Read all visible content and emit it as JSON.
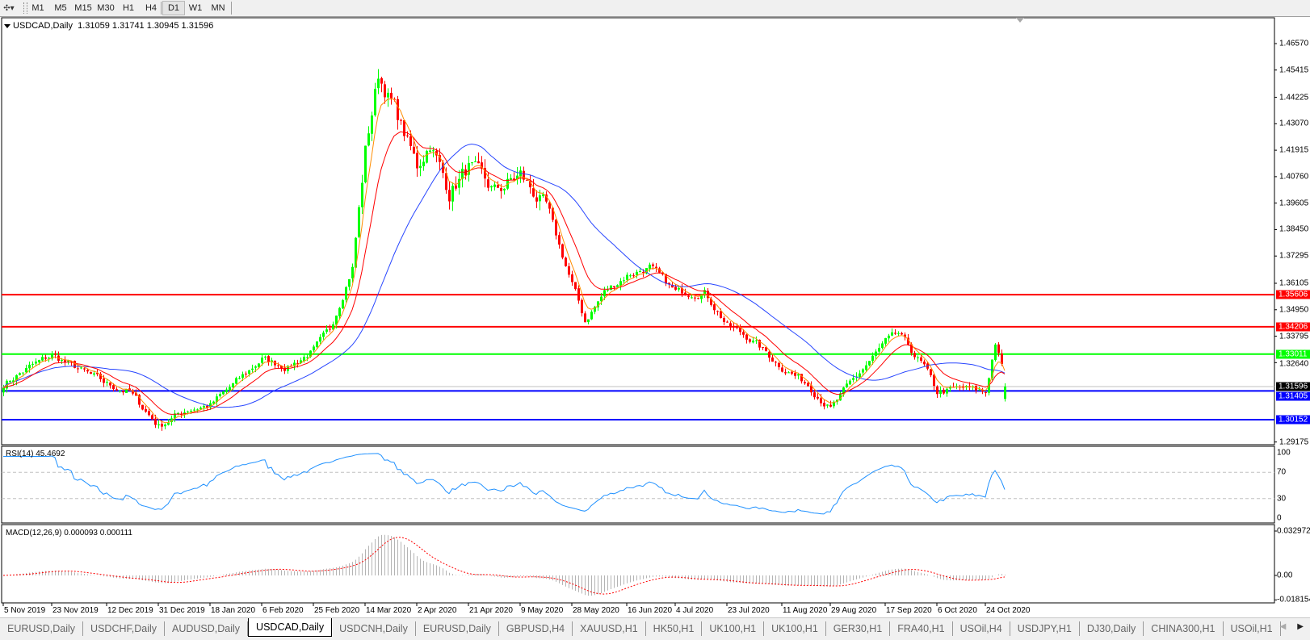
{
  "toolbar": {
    "tool_icon": "crosshair-cursor-icon",
    "timeframes": [
      "M1",
      "M5",
      "M15",
      "M30",
      "H1",
      "H4",
      "D1",
      "W1",
      "MN"
    ],
    "active_timeframe": "D1"
  },
  "chart": {
    "title": "USDCAD,Daily",
    "ohlc": "1.31059 1.31741 1.30945 1.31596",
    "last_open": 1.31059,
    "last_high": 1.31741,
    "last_low": 1.30945,
    "last_close": 1.31596,
    "current_price_label": "1.31596",
    "colors": {
      "bull_candle": "#00ff00",
      "bear_candle": "#ff0000",
      "ma_fast": "#ff8c00",
      "ma_mid": "#ff0000",
      "ma_slow": "#2846ff",
      "rsi_line": "#1e90ff",
      "macd_histogram": "#b4b4b4",
      "macd_signal": "#ff0000"
    }
  },
  "chart_data": {
    "type": "candlestick",
    "ylim": [
      1.29175,
      1.4657
    ],
    "price_ticks": [
      "1.46570",
      "1.45415",
      "1.44225",
      "1.43070",
      "1.41915",
      "1.40760",
      "1.39605",
      "1.38450",
      "1.37295",
      "1.36105",
      "1.34950",
      "1.33795",
      "1.32640",
      "1.29175"
    ],
    "levels": [
      {
        "price": "1.35606",
        "color": "#ff0000"
      },
      {
        "price": "1.34206",
        "color": "#ff0000"
      },
      {
        "price": "1.33011",
        "color": "#00ff00"
      },
      {
        "price": "1.31405",
        "color": "#0000ff"
      },
      {
        "price": "1.30152",
        "color": "#0000ff"
      }
    ],
    "close_path": [
      [
        "2019-11-05",
        1.317
      ],
      [
        "2019-11-14",
        1.3244
      ],
      [
        "2019-11-23",
        1.3297
      ],
      [
        "2019-12-12",
        1.317
      ],
      [
        "2019-12-20",
        1.3135
      ],
      [
        "2019-12-31",
        1.2987
      ],
      [
        "2020-01-10",
        1.3061
      ],
      [
        "2020-01-18",
        1.3078
      ],
      [
        "2020-02-06",
        1.328
      ],
      [
        "2020-02-15",
        1.3244
      ],
      [
        "2020-02-25",
        1.3318
      ],
      [
        "2020-03-01",
        1.3406
      ],
      [
        "2020-03-09",
        1.3681
      ],
      [
        "2020-03-14",
        1.4192
      ],
      [
        "2020-03-19",
        1.452
      ],
      [
        "2020-03-25",
        1.4375
      ],
      [
        "2020-04-02",
        1.4118
      ],
      [
        "2020-04-06",
        1.4227
      ],
      [
        "2020-04-14",
        1.4009
      ],
      [
        "2020-04-21",
        1.4118
      ],
      [
        "2020-04-30",
        1.4009
      ],
      [
        "2020-05-09",
        1.4083
      ],
      [
        "2020-05-18",
        1.3935
      ],
      [
        "2020-05-28",
        1.3607
      ],
      [
        "2020-06-01",
        1.3445
      ],
      [
        "2020-06-08",
        1.3572
      ],
      [
        "2020-06-16",
        1.3646
      ],
      [
        "2020-06-24",
        1.3681
      ],
      [
        "2020-07-04",
        1.3572
      ],
      [
        "2020-07-14",
        1.3572
      ],
      [
        "2020-07-23",
        1.3427
      ],
      [
        "2020-07-31",
        1.3371
      ],
      [
        "2020-08-11",
        1.3244
      ],
      [
        "2020-08-20",
        1.317
      ],
      [
        "2020-08-29",
        1.3061
      ],
      [
        "2020-09-05",
        1.317
      ],
      [
        "2020-09-17",
        1.3353
      ],
      [
        "2020-09-22",
        1.3388
      ],
      [
        "2020-10-01",
        1.3244
      ],
      [
        "2020-10-06",
        1.3135
      ],
      [
        "2020-10-15",
        1.3152
      ],
      [
        "2020-10-24",
        1.3135
      ],
      [
        "2020-10-27",
        1.3353
      ],
      [
        "2020-10-29",
        1.3244
      ],
      [
        "2020-10-30",
        1.31596
      ]
    ],
    "x_ticks": [
      [
        "2019-11-05",
        "5 Nov 2019"
      ],
      [
        "2019-11-23",
        "23 Nov 2019"
      ],
      [
        "2019-12-12",
        "12 Dec 2019"
      ],
      [
        "2019-12-31",
        "31 Dec 2019"
      ],
      [
        "2020-01-18",
        "18 Jan 2020"
      ],
      [
        "2020-02-06",
        "6 Feb 2020"
      ],
      [
        "2020-02-25",
        "25 Feb 2020"
      ],
      [
        "2020-03-14",
        "14 Mar 2020"
      ],
      [
        "2020-04-02",
        "2 Apr 2020"
      ],
      [
        "2020-04-21",
        "21 Apr 2020"
      ],
      [
        "2020-05-09",
        "9 May 2020"
      ],
      [
        "2020-05-28",
        "28 May 2020"
      ],
      [
        "2020-06-16",
        "16 Jun 2020"
      ],
      [
        "2020-07-04",
        "4 Jul 2020"
      ],
      [
        "2020-07-23",
        "23 Jul 2020"
      ],
      [
        "2020-08-11",
        "11 Aug 2020"
      ],
      [
        "2020-08-29",
        "29 Aug 2020"
      ],
      [
        "2020-09-17",
        "17 Sep 2020"
      ],
      [
        "2020-10-06",
        "6 Oct 2020"
      ],
      [
        "2020-10-24",
        "24 Oct 2020"
      ]
    ],
    "rsi": {
      "label": "RSI(14) 45.4692",
      "ticks": [
        "100",
        "70",
        "30",
        "0"
      ],
      "levels": [
        70,
        30
      ],
      "ylim": [
        0,
        100
      ]
    },
    "macd": {
      "label": "MACD(12,26,9) 0.000093 0.000111",
      "ticks": [
        "0.032972",
        "0.00",
        "-0.018154"
      ],
      "ylim": [
        -0.018154,
        0.032972
      ]
    }
  },
  "tabs": {
    "items": [
      "EURUSD,Daily",
      "USDCHF,Daily",
      "AUDUSD,Daily",
      "USDCAD,Daily",
      "USDCNH,Daily",
      "EURUSD,Daily",
      "GBPUSD,H4",
      "XAUUSD,H1",
      "HK50,H1",
      "UK100,H1",
      "UK100,H1",
      "GER30,H1",
      "FRA40,H1",
      "USOil,H4",
      "USDJPY,H1",
      "DJ30,Daily",
      "CHINA300,H1",
      "USOil,H1"
    ],
    "active": "USDCAD,Daily",
    "scroll_left_icon": "arrow-left-icon",
    "scroll_right_icon": "arrow-right-icon"
  }
}
